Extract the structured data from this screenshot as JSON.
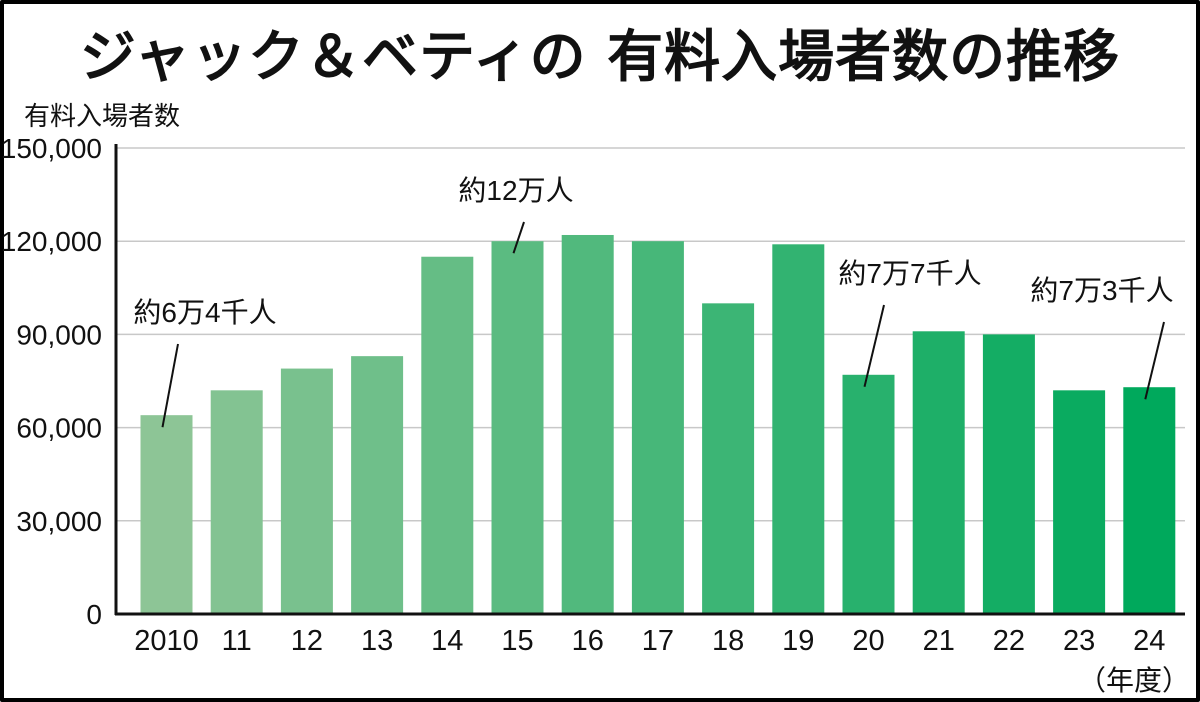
{
  "chart_data": {
    "type": "bar",
    "title": "ジャック＆ベティの 有料入場者数の推移",
    "ylabel": "有料入場者数",
    "xunit": "（年度）",
    "categories": [
      "2010",
      "11",
      "12",
      "13",
      "14",
      "15",
      "16",
      "17",
      "18",
      "19",
      "20",
      "21",
      "22",
      "23",
      "24"
    ],
    "values": [
      64000,
      72000,
      79000,
      83000,
      115000,
      120000,
      122000,
      120000,
      100000,
      119000,
      77000,
      91000,
      90000,
      72000,
      73000
    ],
    "ylim": [
      0,
      150000
    ],
    "yticks": [
      0,
      30000,
      60000,
      90000,
      120000,
      150000
    ],
    "ytick_labels": [
      "0",
      "30,000",
      "60,000",
      "90,000",
      "120,000",
      "150,000"
    ],
    "grid": true,
    "colors": {
      "bar_start": "#8dc596",
      "bar_end": "#00a95c",
      "grid": "#c8c8c8",
      "axis": "#111111"
    },
    "annotations": [
      {
        "index": 0,
        "text": "約6万4千人"
      },
      {
        "index": 5,
        "text": "約12万人"
      },
      {
        "index": 10,
        "text": "約7万7千人"
      },
      {
        "index": 14,
        "text": "約7万3千人"
      }
    ]
  }
}
